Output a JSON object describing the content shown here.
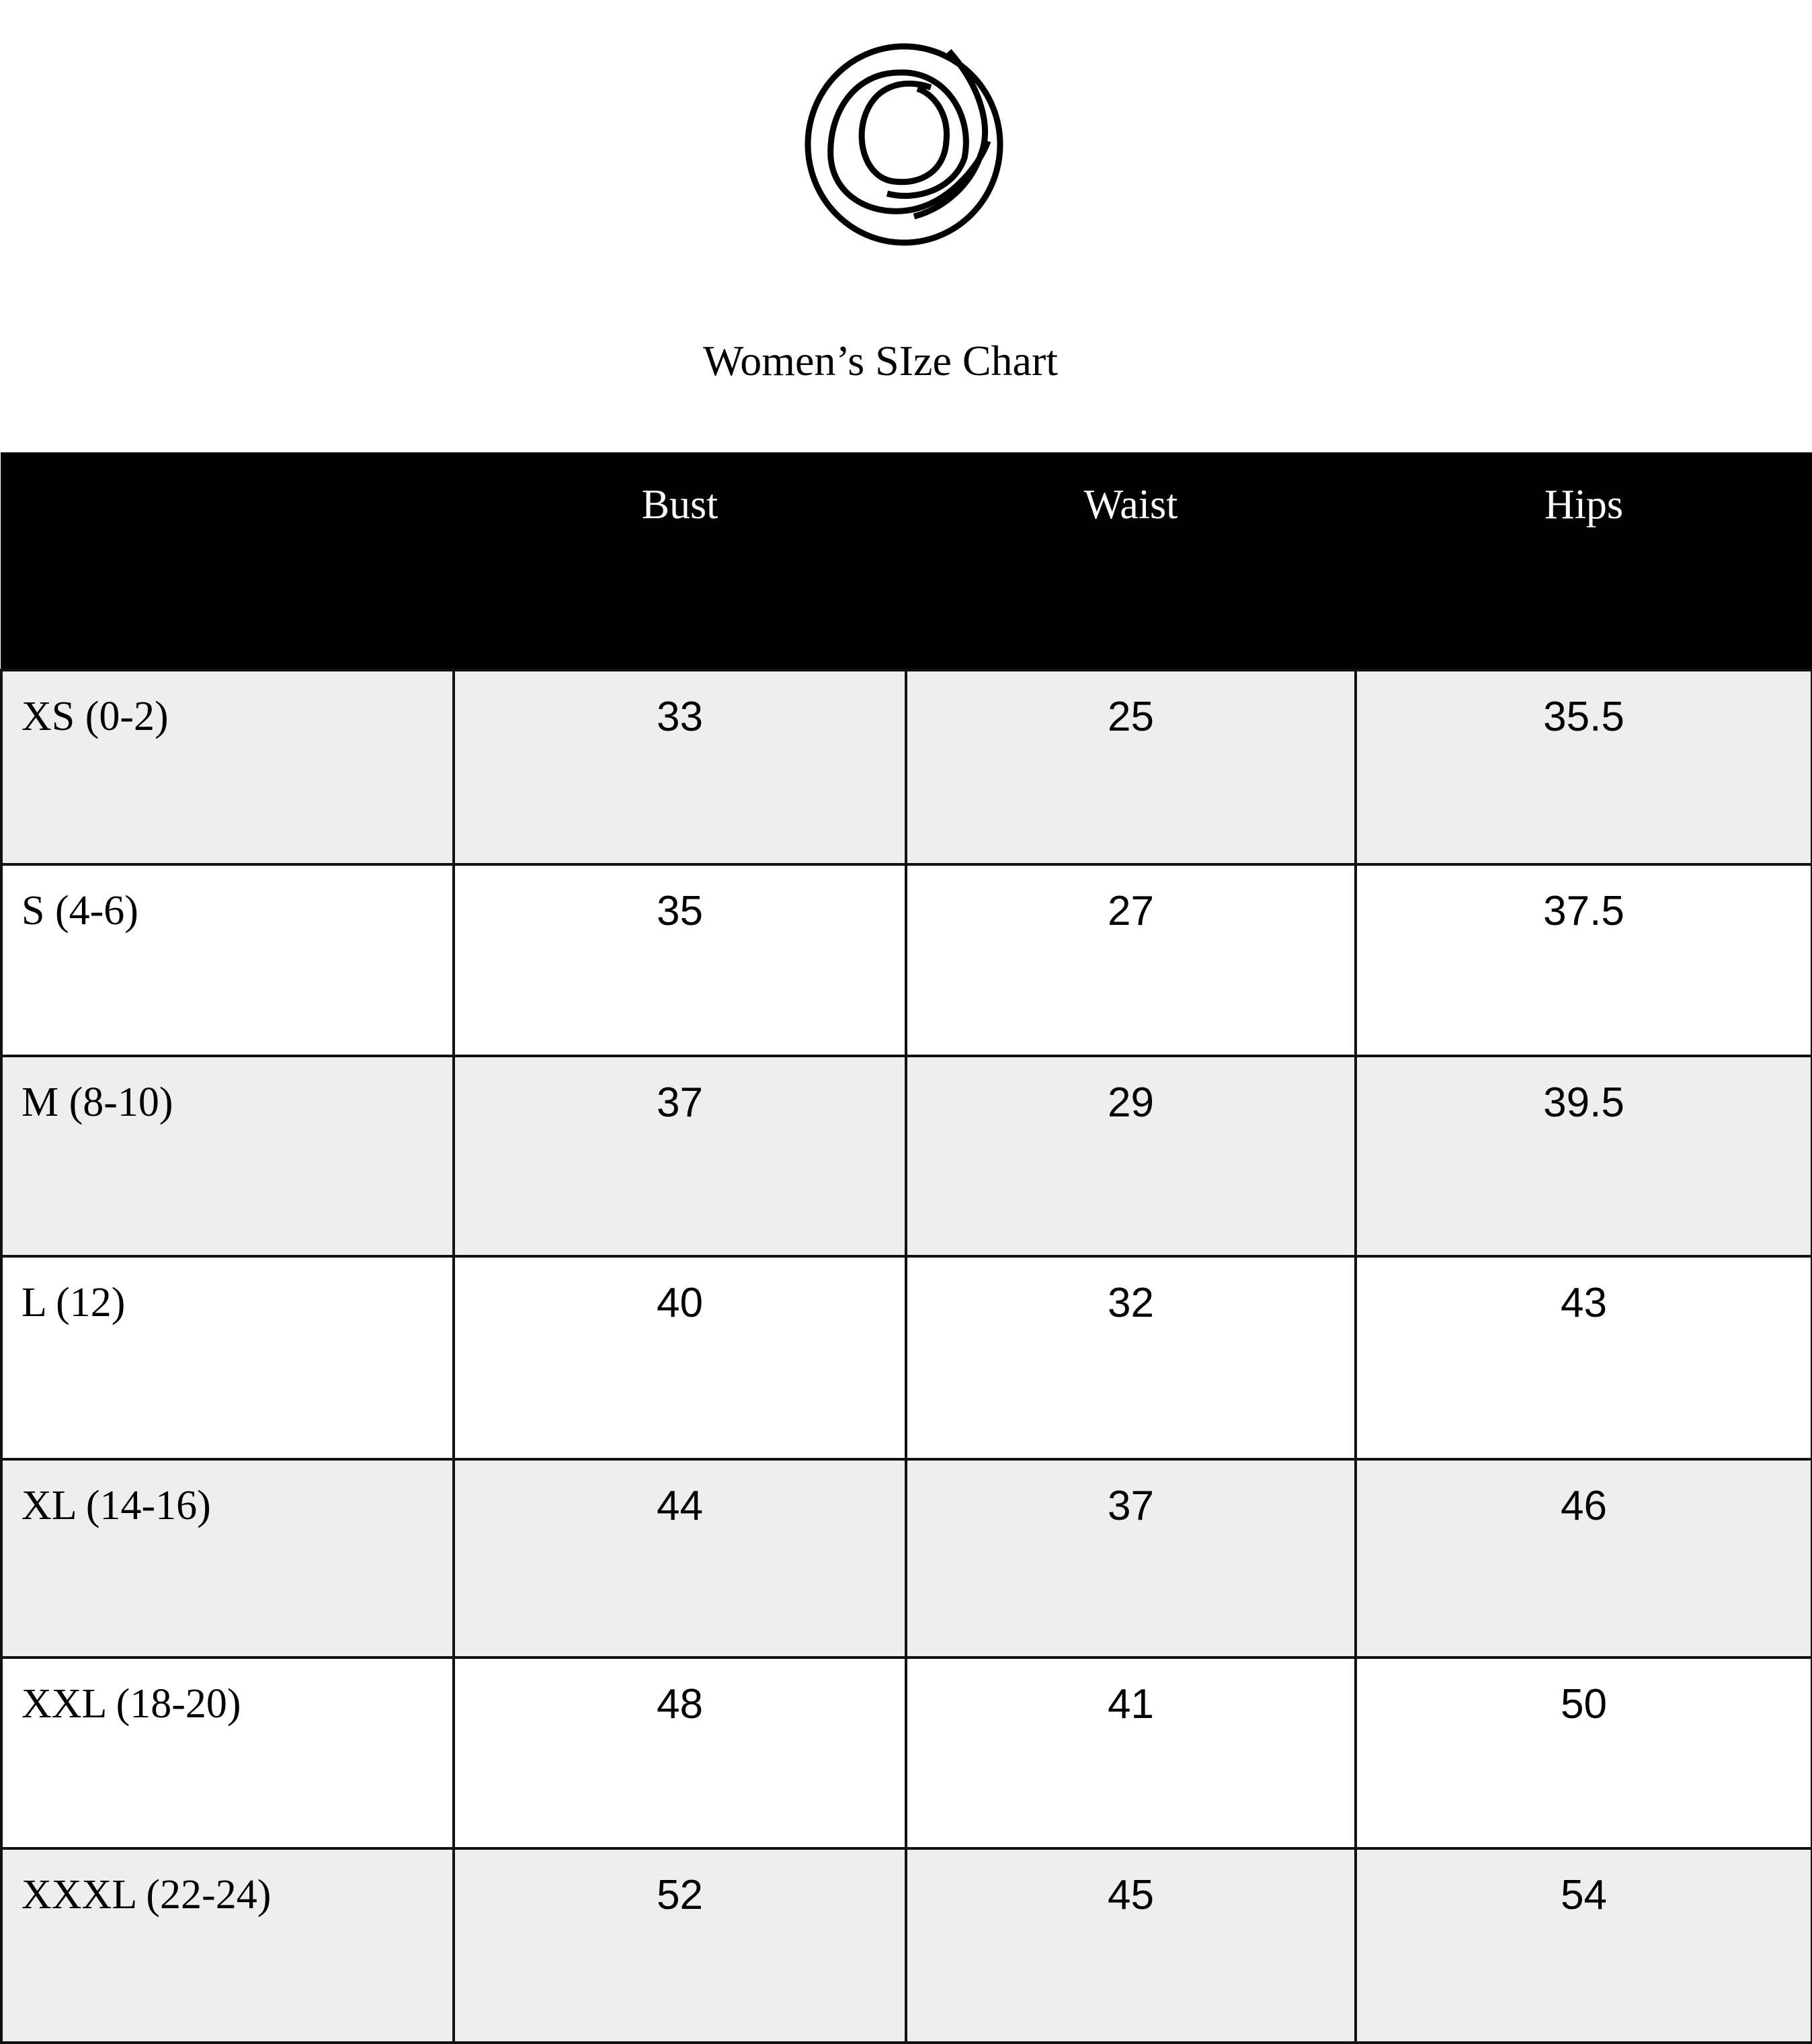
{
  "logo": {
    "icon": "spiral-circle-logo"
  },
  "title": "Women’s SIze Chart",
  "colors": {
    "header_bg": "#000000",
    "header_text": "#ffffff",
    "stripe": "#eeeeee"
  },
  "table": {
    "headers": [
      "",
      "Bust",
      "Waist",
      "Hips"
    ],
    "rows": [
      {
        "size": "XS (0-2)",
        "bust": "33",
        "waist": "25",
        "hips": "35.5"
      },
      {
        "size": "S (4-6)",
        "bust": "35",
        "waist": "27",
        "hips": "37.5"
      },
      {
        "size": "M (8-10)",
        "bust": "37",
        "waist": "29",
        "hips": "39.5"
      },
      {
        "size": "L (12)",
        "bust": "40",
        "waist": "32",
        "hips": "43"
      },
      {
        "size": "XL (14-16)",
        "bust": "44",
        "waist": "37",
        "hips": "46"
      },
      {
        "size": "XXL (18-20)",
        "bust": "48",
        "waist": "41",
        "hips": "50"
      },
      {
        "size": "XXXL (22-24)",
        "bust": "52",
        "waist": "45",
        "hips": "54"
      }
    ]
  }
}
